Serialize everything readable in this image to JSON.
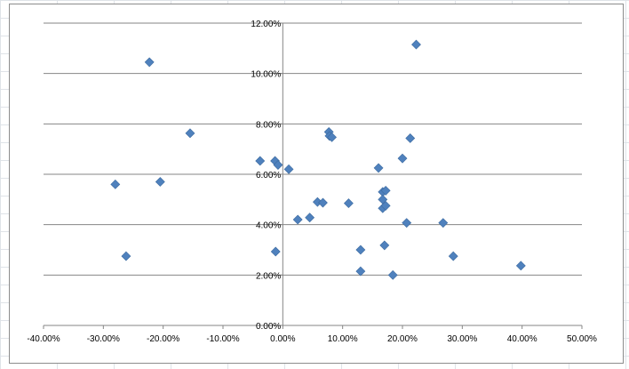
{
  "chart_data": {
    "type": "scatter",
    "title": "",
    "xlabel": "",
    "ylabel": "",
    "xlim": [
      -0.4,
      0.5
    ],
    "ylim": [
      0.0,
      0.12
    ],
    "x_ticks": [
      -0.4,
      -0.3,
      -0.2,
      -0.1,
      0.0,
      0.1,
      0.2,
      0.3,
      0.4,
      0.5
    ],
    "x_tick_labels": [
      "-40.00%",
      "-30.00%",
      "-20.00%",
      "-10.00%",
      "0.00%",
      "10.00%",
      "20.00%",
      "30.00%",
      "40.00%",
      "50.00%"
    ],
    "y_ticks": [
      0.0,
      0.02,
      0.04,
      0.06,
      0.08,
      0.1,
      0.12
    ],
    "y_tick_labels": [
      "0.00%",
      "2.00%",
      "4.00%",
      "6.00%",
      "8.00%",
      "10.00%",
      "12.00%"
    ],
    "grid": {
      "horizontal": true,
      "vertical": false
    },
    "legend": "none",
    "marker": "diamond",
    "marker_color": "#4f81bd",
    "marker_edge": "#3c6a9f",
    "points": [
      {
        "x": -0.28,
        "y": 0.056
      },
      {
        "x": -0.262,
        "y": 0.0275
      },
      {
        "x": -0.223,
        "y": 0.1045
      },
      {
        "x": -0.205,
        "y": 0.057
      },
      {
        "x": -0.155,
        "y": 0.0763
      },
      {
        "x": -0.038,
        "y": 0.0653
      },
      {
        "x": -0.013,
        "y": 0.0653
      },
      {
        "x": -0.008,
        "y": 0.0637
      },
      {
        "x": -0.012,
        "y": 0.0293
      },
      {
        "x": 0.01,
        "y": 0.062
      },
      {
        "x": 0.025,
        "y": 0.042
      },
      {
        "x": 0.045,
        "y": 0.0428
      },
      {
        "x": 0.058,
        "y": 0.049
      },
      {
        "x": 0.067,
        "y": 0.0487
      },
      {
        "x": 0.077,
        "y": 0.0768
      },
      {
        "x": 0.078,
        "y": 0.0752
      },
      {
        "x": 0.082,
        "y": 0.0747
      },
      {
        "x": 0.11,
        "y": 0.0485
      },
      {
        "x": 0.13,
        "y": 0.03
      },
      {
        "x": 0.13,
        "y": 0.0215
      },
      {
        "x": 0.16,
        "y": 0.0625
      },
      {
        "x": 0.167,
        "y": 0.053
      },
      {
        "x": 0.167,
        "y": 0.05
      },
      {
        "x": 0.167,
        "y": 0.0465
      },
      {
        "x": 0.172,
        "y": 0.0535
      },
      {
        "x": 0.172,
        "y": 0.0475
      },
      {
        "x": 0.17,
        "y": 0.0318
      },
      {
        "x": 0.184,
        "y": 0.02
      },
      {
        "x": 0.2,
        "y": 0.0663
      },
      {
        "x": 0.207,
        "y": 0.0407
      },
      {
        "x": 0.213,
        "y": 0.0743
      },
      {
        "x": 0.223,
        "y": 0.1115
      },
      {
        "x": 0.268,
        "y": 0.0407
      },
      {
        "x": 0.285,
        "y": 0.0275
      },
      {
        "x": 0.398,
        "y": 0.0237
      }
    ]
  }
}
